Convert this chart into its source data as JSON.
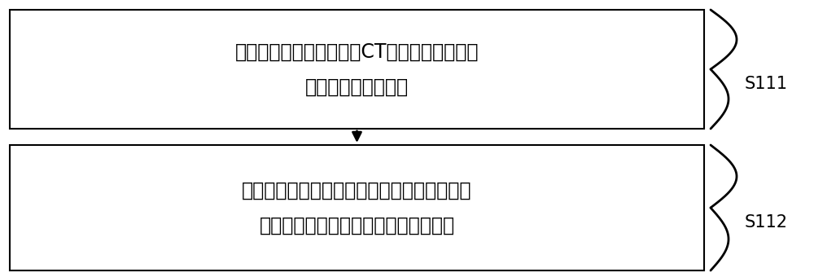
{
  "box1_text": "对骨骼组织进行三维螺旋CT扫描，以获取骨骼\n组织的三维医学影像",
  "box2_text": "对骨骼组织的三维医学影像的灰度阀値进行调\n整，以确定皮质骨和松质骨的轮廓边界",
  "label1": "S111",
  "label2": "S112",
  "box_color": "#ffffff",
  "border_color": "#000000",
  "text_color": "#000000",
  "bg_color": "#ffffff",
  "font_size": 17,
  "label_font_size": 15
}
